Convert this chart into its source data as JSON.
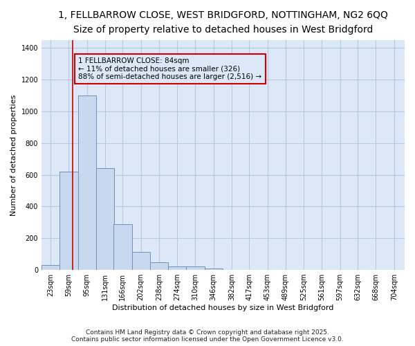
{
  "title_line1": "1, FELLBARROW CLOSE, WEST BRIDGFORD, NOTTINGHAM, NG2 6QQ",
  "title_line2": "Size of property relative to detached houses in West Bridgford",
  "xlabel": "Distribution of detached houses by size in West Bridgford",
  "ylabel": "Number of detached properties",
  "footer1": "Contains HM Land Registry data © Crown copyright and database right 2025.",
  "footer2": "Contains public sector information licensed under the Open Government Licence v3.0.",
  "annotation_line1": "1 FELLBARROW CLOSE: 84sqm",
  "annotation_line2": "← 11% of detached houses are smaller (326)",
  "annotation_line3": "88% of semi-detached houses are larger (2,516) →",
  "bin_edges": [
    23,
    59,
    95,
    131,
    166,
    202,
    238,
    274,
    310,
    346,
    382,
    417,
    453,
    489,
    525,
    561,
    597,
    632,
    668,
    704,
    740
  ],
  "bar_heights": [
    30,
    620,
    1100,
    640,
    290,
    115,
    50,
    20,
    20,
    10,
    0,
    0,
    0,
    0,
    0,
    0,
    0,
    0,
    0,
    0
  ],
  "bar_color": "#c8d8ee",
  "bar_edge_color": "#7090b8",
  "vline_x": 84,
  "vline_color": "#cc0000",
  "fig_bg_color": "#ffffff",
  "plot_bg_color": "#dce8f8",
  "grid_color": "#b8c8dc",
  "annotation_box_facecolor": "#dce8f8",
  "annotation_box_edgecolor": "#cc0000",
  "ylim": [
    0,
    1450
  ],
  "yticks": [
    0,
    200,
    400,
    600,
    800,
    1000,
    1200,
    1400
  ],
  "title1_fontsize": 10,
  "title2_fontsize": 9,
  "ylabel_fontsize": 8,
  "xlabel_fontsize": 8,
  "tick_fontsize": 7,
  "footer_fontsize": 6.5,
  "ann_fontsize": 7.5
}
